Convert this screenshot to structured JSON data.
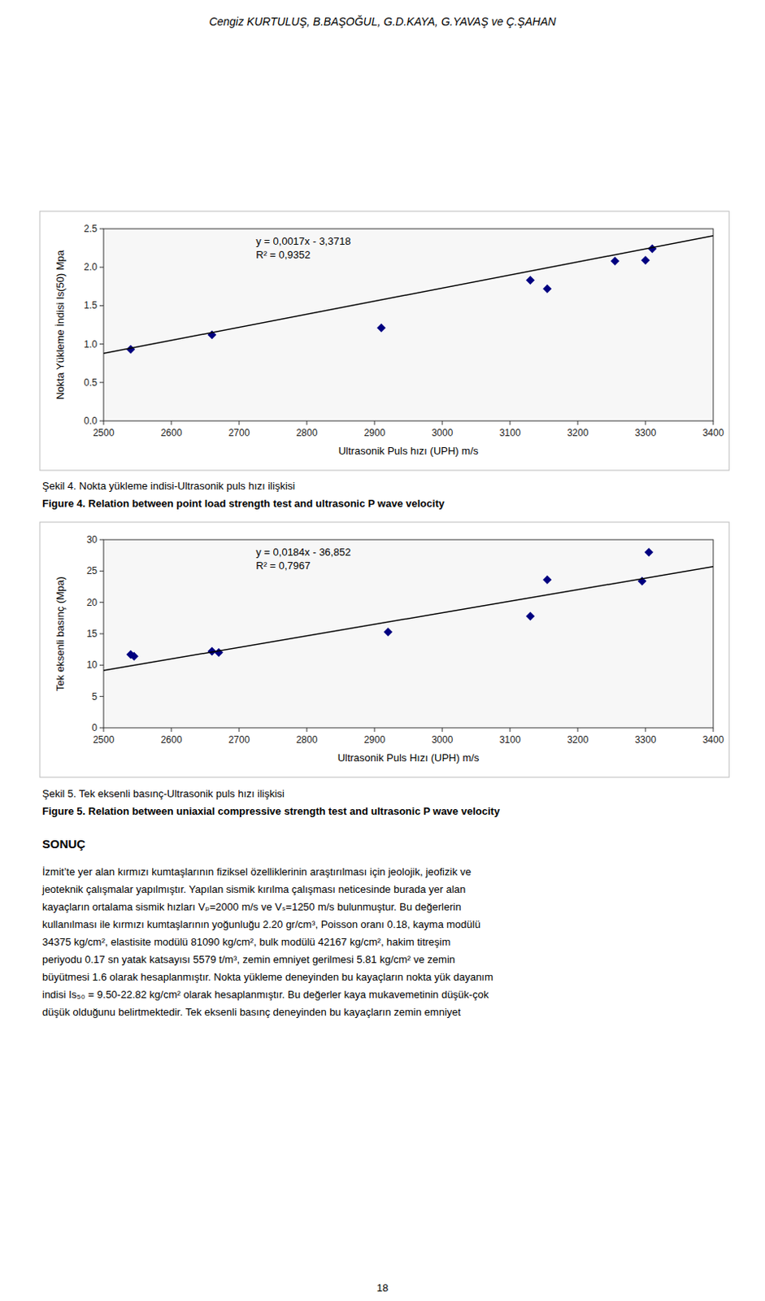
{
  "header": "Cengiz KURTULUŞ,  B.BAŞOĞUL, G.D.KAYA, G.YAVAŞ ve Ç.ŞAHAN",
  "chart_data": [
    {
      "type": "scatter",
      "title": "Şekil 4. Nokta yükleme indisi-Ultrasonik puls hızı ilişkisi",
      "subtitle": "Figure 4. Relation between point load strength test and ultrasonic P wave velocity",
      "xlabel": "Ultrasonik Puls hızı (UPH)  m/s",
      "ylabel": "Nokta Yükleme İndisi Is(50) Mpa",
      "annotations": [
        "y = 0,0017x - 3,3718",
        "R² = 0,9352"
      ],
      "series": [
        {
          "type": "scatter",
          "x": [
            2540,
            2660,
            2910,
            3130,
            3155,
            3255,
            3300,
            3310
          ],
          "values": [
            0.93,
            1.12,
            1.21,
            1.83,
            1.72,
            2.08,
            2.09,
            2.24
          ],
          "color": "#000080",
          "marker": "diamond"
        },
        {
          "type": "line",
          "x": [
            2500,
            3400
          ],
          "values": [
            0.8782,
            2.4082
          ],
          "color": "#000000"
        }
      ],
      "xlim": [
        2500,
        3400
      ],
      "ylim": [
        0,
        2.5
      ],
      "xticks": [
        2500,
        2600,
        2700,
        2800,
        2900,
        3000,
        3100,
        3200,
        3300,
        3400
      ],
      "yticks": [
        {
          "value": 0,
          "label": "0.0"
        },
        0.5,
        {
          "value": 1,
          "label": "1.0"
        },
        1.5,
        {
          "value": 2,
          "label": "2.0"
        },
        2.5
      ],
      "grid": false
    },
    {
      "type": "scatter",
      "title": "Şekil 5. Tek eksenli basınç-Ultrasonik puls hızı ilişkisi",
      "subtitle": "Figure 5. Relation between uniaxial compressive strength test and ultrasonic P wave velocity",
      "xlabel": "Ultrasonik Puls Hızı (UPH) m/s",
      "ylabel": "Tek eksenli basınç  (Mpa)",
      "annotations": [
        "y = 0,0184x - 36,852",
        "R² = 0,7967"
      ],
      "series": [
        {
          "type": "scatter",
          "x": [
            2540,
            2545,
            2660,
            2670,
            2920,
            3130,
            3155,
            3295,
            3305
          ],
          "values": [
            11.7,
            11.4,
            12.2,
            12.0,
            15.3,
            17.8,
            23.6,
            23.4,
            28.0
          ],
          "color": "#000080",
          "marker": "diamond"
        },
        {
          "type": "line",
          "x": [
            2500,
            3400
          ],
          "values": [
            9.148,
            25.708
          ],
          "color": "#000000"
        }
      ],
      "xlim": [
        2500,
        3400
      ],
      "ylim": [
        0,
        30
      ],
      "xticks": [
        2500,
        2600,
        2700,
        2800,
        2900,
        3000,
        3100,
        3200,
        3300,
        3400
      ],
      "yticks": [
        0,
        5,
        10,
        15,
        20,
        25,
        30
      ],
      "grid": false
    }
  ],
  "conclusion": {
    "title": "SONUÇ",
    "lines": [
      "İzmit’te yer alan kırmızı kumtaşlarının fiziksel özelliklerinin araştırılması için jeolojik, jeofizik ve",
      "jeoteknik çalışmalar yapılmıştır. Yapılan sismik kırılma çalışması neticesinde burada yer alan",
      "kayaçların ortalama sismik hızları Vₚ=2000 m/s ve Vₛ=1250 m/s bulunmuştur. Bu değerlerin",
      "kullanılması ile kırmızı kumtaşlarının yoğunluğu 2.20 gr/cm³, Poisson oranı 0.18, kayma modülü",
      "34375 kg/cm², elastisite modülü 81090 kg/cm², bulk modülü 42167 kg/cm², hakim titreşim",
      "periyodu 0.17 sn yatak katsayısı 5579 t/m³, zemin emniyet gerilmesi 5.81 kg/cm² ve zemin",
      "büyütmesi 1.6 olarak hesaplanmıştır. Nokta yükleme deneyinden bu kayaçların nokta yük dayanım",
      "indisi Is₅₀ = 9.50-22.82 kg/cm² olarak hesaplanmıştır. Bu değerler kaya mukavemetinin düşük-çok",
      "düşük olduğunu belirtmektedir. Tek eksenli basınç deneyinden bu kayaçların zemin emniyet"
    ]
  },
  "page_number": "18"
}
